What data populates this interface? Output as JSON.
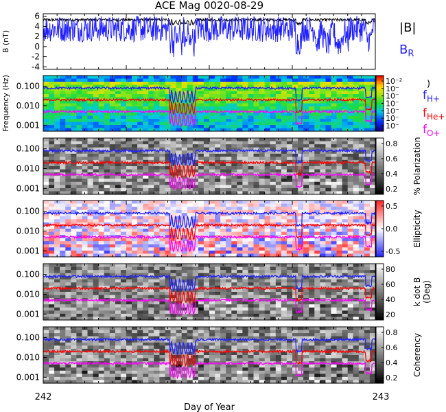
{
  "title": "ACE Mag 0020-08-29",
  "xlabel": "Day of Year",
  "x_ticks": [
    "242",
    "243"
  ],
  "chart_data": [
    {
      "type": "line",
      "ylabel": "B (nT)",
      "ylim": [
        -4.5,
        6.5
      ],
      "y_ticks": [
        -4,
        -2,
        0,
        2,
        4,
        6
      ],
      "series": [
        {
          "name": "|B|",
          "color": "#000000",
          "base": 5.3,
          "amp": 0.55
        },
        {
          "name": "B_R",
          "color": "#2020ff",
          "base": 3.5,
          "amp": 2.6
        }
      ],
      "legend": [
        {
          "text": "|B|",
          "color": "#000000"
        },
        {
          "text": "B",
          "sub": "R",
          "color": "#2020ff"
        }
      ]
    },
    {
      "type": "heatmap",
      "ylabel": "Frequency (Hz)",
      "y_ticks": [
        "0.100",
        "0.010",
        "0.001"
      ],
      "colormap": "rainbow",
      "colorbar_ticks": [
        "10⁻²",
        "10⁻",
        "10⁻",
        "10⁻",
        "10⁻",
        "10⁻",
        "10⁻"
      ],
      "legend": [
        {
          "text": "f",
          "sub": "H+",
          "color": "#2020ff"
        },
        {
          "text": "f",
          "sub": "He+",
          "color": "#ff0000"
        },
        {
          "text": "f",
          "sub": "O+",
          "color": "#ff00ff"
        }
      ],
      "bracket": ")"
    },
    {
      "type": "heatmap",
      "y_ticks": [
        "0.100",
        "0.010",
        "0.001"
      ],
      "colormap": "gray",
      "colorbar_ticks": [
        "0.8",
        "0.6",
        "0.4",
        "0.2"
      ],
      "colorbar_label": "% Polarization"
    },
    {
      "type": "heatmap",
      "y_ticks": [
        "0.100",
        "0.010",
        "0.001"
      ],
      "colormap": "bwr",
      "colorbar_ticks": [
        "0.5",
        "0.0",
        "-0.5"
      ],
      "colorbar_label": "Ellipticity"
    },
    {
      "type": "heatmap",
      "y_ticks": [
        "0.100",
        "0.010",
        "0.001"
      ],
      "colormap": "gray",
      "colorbar_ticks": [
        "80",
        "60",
        "40",
        "20"
      ],
      "colorbar_label": "k dot B",
      "colorbar_label2": "(Deg)"
    },
    {
      "type": "heatmap",
      "y_ticks": [
        "0.100",
        "0.010",
        "0.001"
      ],
      "colormap": "gray",
      "colorbar_ticks": [
        "0.8",
        "0.6",
        "0.4",
        "0.2"
      ],
      "colorbar_label": "Coherency"
    }
  ],
  "gyrofrequency_lines": [
    {
      "name": "fH+",
      "color": "#2020ff",
      "value": 0.08
    },
    {
      "name": "fHe+",
      "color": "#ff0000",
      "value": 0.02
    },
    {
      "name": "fO+",
      "color": "#ff00ff",
      "value": 0.005
    }
  ]
}
